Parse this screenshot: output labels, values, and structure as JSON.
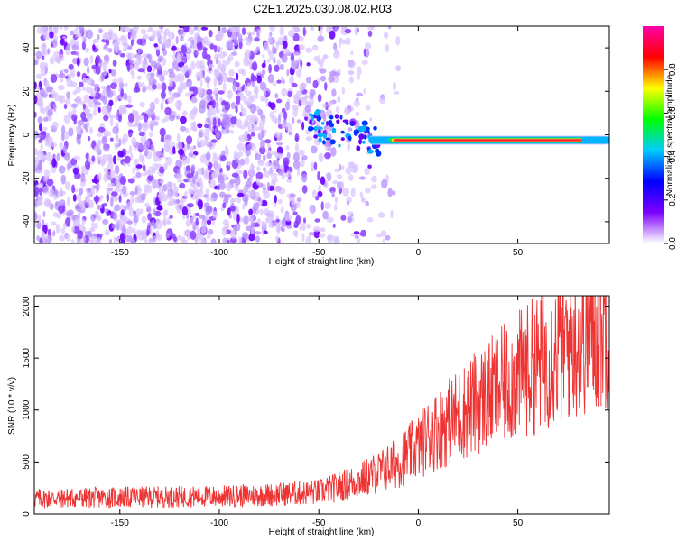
{
  "title": "C2E1.2025.030.08.02.R03",
  "chart_data": [
    {
      "type": "heatmap",
      "xlabel": "Height of straight line (km)",
      "ylabel": "Frequency (Hz)",
      "xlim": [
        -193,
        96
      ],
      "ylim": [
        -50,
        50
      ],
      "x_ticks": [
        -150,
        -100,
        -50,
        0,
        50
      ],
      "y_ticks": [
        -40,
        -20,
        0,
        20,
        40
      ],
      "colorbar": {
        "label": "Normalized spectral amplitude",
        "range": [
          0,
          1
        ],
        "ticks": [
          "0.0",
          "0.2",
          "0.4",
          "0.6",
          "0.8"
        ],
        "colors": [
          "#ffffff",
          "#7b00ff",
          "#0000ff",
          "#00ccff",
          "#00ff00",
          "#ffff00",
          "#ff0000",
          "#ff00aa"
        ]
      },
      "features": [
        {
          "name": "signal line",
          "x_range": [
            -25,
            96
          ],
          "frequency_hz": -2.5,
          "amplitude": 0.95
        },
        {
          "name": "noise",
          "x_range": [
            -193,
            -20
          ],
          "frequency_range": [
            -50,
            50
          ],
          "amplitude": 0.3
        }
      ]
    },
    {
      "type": "line",
      "xlabel": "Height of straight line (km)",
      "ylabel": "SNR (10 * v/v)",
      "xlim": [
        -193,
        96
      ],
      "ylim": [
        0,
        2100
      ],
      "x_ticks": [
        -150,
        -100,
        -50,
        0,
        50
      ],
      "y_ticks": [
        0,
        500,
        1000,
        1500,
        2000
      ],
      "color": "#ee3333",
      "series": [
        {
          "x": [
            -193,
            -150,
            -100,
            -75,
            -50,
            -40,
            -30,
            -20,
            -10,
            0,
            5,
            10,
            20,
            30,
            40,
            50,
            60,
            70,
            80,
            90,
            96
          ],
          "values": [
            150,
            160,
            170,
            185,
            210,
            260,
            320,
            400,
            500,
            650,
            750,
            820,
            950,
            1080,
            1200,
            1330,
            1450,
            1570,
            1700,
            1800,
            1850
          ]
        }
      ]
    }
  ]
}
